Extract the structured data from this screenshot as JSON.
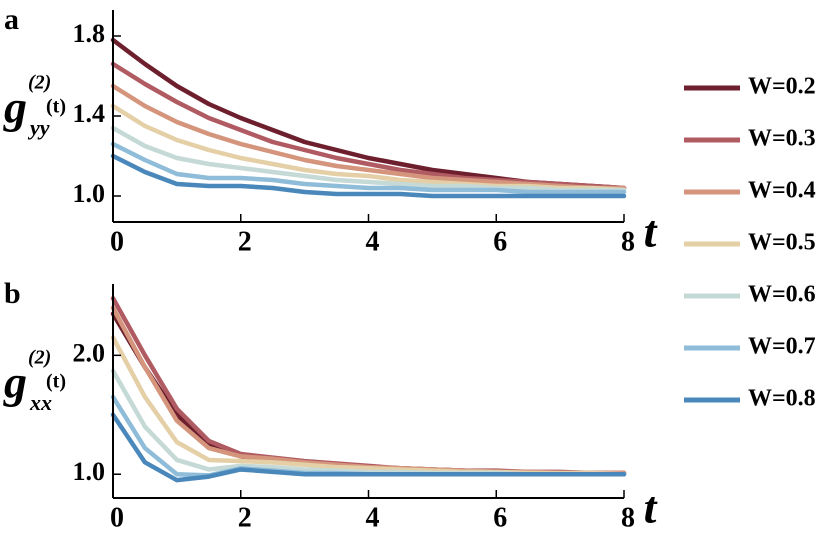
{
  "chart_data": [
    {
      "type": "line",
      "panel_label": "a",
      "ylabel": {
        "main": "g",
        "sup": "(2)",
        "sub": "yy",
        "arg": "(t)"
      },
      "xlabel": "t",
      "x": [
        0,
        0.5,
        1,
        1.5,
        2,
        2.5,
        3,
        3.5,
        4,
        4.5,
        5,
        5.5,
        6,
        6.5,
        7,
        7.5,
        8
      ],
      "xlim": [
        0,
        8
      ],
      "xticks": [
        0,
        2,
        4,
        6,
        8
      ],
      "ylim": [
        0.87,
        1.93
      ],
      "yticks": [
        {
          "value": 1.0,
          "label": "1.0"
        },
        {
          "value": 1.4,
          "label": "1.4"
        },
        {
          "value": 1.8,
          "label": "1.8"
        }
      ],
      "legend": "right",
      "series": [
        {
          "name": "W=0.2",
          "color": "#6e1f2e",
          "values": [
            1.78,
            1.66,
            1.55,
            1.46,
            1.39,
            1.33,
            1.27,
            1.23,
            1.19,
            1.16,
            1.13,
            1.11,
            1.09,
            1.07,
            1.06,
            1.05,
            1.04
          ]
        },
        {
          "name": "W=0.3",
          "color": "#b05a62",
          "values": [
            1.66,
            1.56,
            1.47,
            1.39,
            1.33,
            1.27,
            1.23,
            1.19,
            1.16,
            1.13,
            1.11,
            1.09,
            1.08,
            1.07,
            1.06,
            1.05,
            1.04
          ]
        },
        {
          "name": "W=0.4",
          "color": "#d4957c",
          "values": [
            1.55,
            1.45,
            1.37,
            1.31,
            1.26,
            1.22,
            1.18,
            1.15,
            1.13,
            1.11,
            1.09,
            1.08,
            1.07,
            1.06,
            1.05,
            1.04,
            1.04
          ]
        },
        {
          "name": "W=0.5",
          "color": "#e4cfa6",
          "values": [
            1.45,
            1.35,
            1.28,
            1.23,
            1.19,
            1.16,
            1.13,
            1.11,
            1.1,
            1.08,
            1.07,
            1.06,
            1.05,
            1.05,
            1.04,
            1.04,
            1.03
          ]
        },
        {
          "name": "W=0.6",
          "color": "#c5d9d6",
          "values": [
            1.34,
            1.25,
            1.19,
            1.16,
            1.14,
            1.12,
            1.1,
            1.08,
            1.07,
            1.06,
            1.05,
            1.05,
            1.04,
            1.04,
            1.03,
            1.03,
            1.03
          ]
        },
        {
          "name": "W=0.7",
          "color": "#8fbcd8",
          "values": [
            1.26,
            1.18,
            1.11,
            1.09,
            1.09,
            1.08,
            1.06,
            1.05,
            1.04,
            1.04,
            1.03,
            1.03,
            1.03,
            1.02,
            1.02,
            1.02,
            1.02
          ]
        },
        {
          "name": "W=0.8",
          "color": "#4a88bb",
          "values": [
            1.2,
            1.12,
            1.06,
            1.05,
            1.05,
            1.04,
            1.02,
            1.01,
            1.01,
            1.01,
            1.0,
            1.0,
            1.0,
            1.0,
            1.0,
            1.0,
            1.0
          ]
        }
      ]
    },
    {
      "type": "line",
      "panel_label": "b",
      "ylabel": {
        "main": "g",
        "sup": "(2)",
        "sub": "xx",
        "arg": "(t)"
      },
      "xlabel": "t",
      "x": [
        0,
        0.5,
        1,
        1.5,
        2,
        2.5,
        3,
        3.5,
        4,
        4.5,
        5,
        5.5,
        6,
        6.5,
        7,
        7.5,
        8
      ],
      "xlim": [
        0,
        8
      ],
      "xticks": [
        0,
        2,
        4,
        6,
        8
      ],
      "ylim": [
        0.8,
        2.6
      ],
      "yticks": [
        {
          "value": 1.0,
          "label": "1.0"
        },
        {
          "value": 2.0,
          "label": "2.0"
        }
      ],
      "series": [
        {
          "color": "#6e1f2e",
          "values": [
            2.35,
            1.9,
            1.5,
            1.25,
            1.15,
            1.12,
            1.1,
            1.08,
            1.06,
            1.05,
            1.04,
            1.03,
            1.02,
            1.02,
            1.01,
            1.01,
            1.01
          ]
        },
        {
          "color": "#b05a62",
          "values": [
            2.48,
            2.0,
            1.55,
            1.28,
            1.17,
            1.14,
            1.11,
            1.09,
            1.07,
            1.05,
            1.04,
            1.03,
            1.03,
            1.02,
            1.02,
            1.01,
            1.01
          ]
        },
        {
          "color": "#d4957c",
          "values": [
            2.4,
            1.9,
            1.45,
            1.22,
            1.15,
            1.13,
            1.1,
            1.08,
            1.06,
            1.05,
            1.04,
            1.03,
            1.02,
            1.02,
            1.01,
            1.01,
            1.01
          ]
        },
        {
          "color": "#e4cfa6",
          "values": [
            2.15,
            1.65,
            1.27,
            1.12,
            1.11,
            1.1,
            1.08,
            1.06,
            1.05,
            1.04,
            1.03,
            1.02,
            1.02,
            1.01,
            1.01,
            1.01,
            1.0
          ]
        },
        {
          "color": "#c5d9d6",
          "values": [
            1.87,
            1.4,
            1.12,
            1.04,
            1.07,
            1.06,
            1.04,
            1.03,
            1.02,
            1.02,
            1.01,
            1.01,
            1.01,
            1.0,
            1.0,
            1.0,
            1.0
          ]
        },
        {
          "color": "#8fbcd8",
          "values": [
            1.65,
            1.22,
            1.0,
            0.99,
            1.05,
            1.03,
            1.01,
            1.01,
            1.0,
            1.0,
            1.0,
            1.0,
            1.0,
            1.0,
            1.0,
            1.0,
            1.0
          ]
        },
        {
          "color": "#4a88bb",
          "values": [
            1.5,
            1.1,
            0.95,
            0.98,
            1.04,
            1.02,
            1.0,
            1.0,
            1.0,
            1.0,
            1.0,
            1.0,
            1.0,
            1.0,
            1.0,
            1.0,
            1.0
          ]
        }
      ]
    }
  ]
}
